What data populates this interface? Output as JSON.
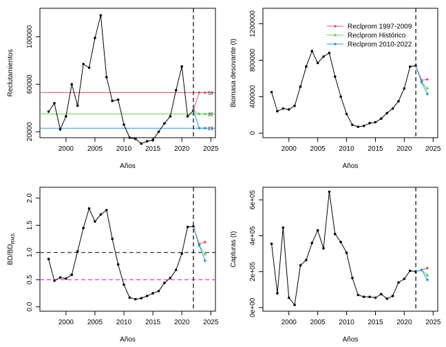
{
  "colors": {
    "historical": "#000000",
    "rec_1997_2009": "#df536b",
    "rec_historico": "#61d04f",
    "rec_2010_2022": "#2297e6",
    "bdrms_ref": "#cd0bbc",
    "vline": "#000000"
  },
  "chart_data": [
    {
      "type": "line",
      "panel": "top-left",
      "xlabel": "Años",
      "ylabel": "Reclutamientos",
      "xlim": [
        1995.5,
        2025.8
      ],
      "ylim": [
        15000,
        124000
      ],
      "xticks": [
        2000,
        2005,
        2010,
        2015,
        2020,
        2025
      ],
      "yticks": [
        20000,
        60000,
        100000
      ],
      "ytick_labels": [
        "20000",
        "60000",
        "100000"
      ],
      "vline_x": 2022,
      "hlines": [
        {
          "y": 53000,
          "color_key": "rec_1997_2009",
          "label": "53"
        },
        {
          "y": 35000,
          "color_key": "rec_historico",
          "label": "35"
        },
        {
          "y": 23000,
          "color_key": "rec_2010_2022",
          "label": "23"
        }
      ],
      "series": [
        {
          "name": "",
          "color_key": "historical",
          "x": [
            1997,
            1998,
            1999,
            2000,
            2001,
            2002,
            2003,
            2004,
            2005,
            2006,
            2007,
            2008,
            2009,
            2010,
            2011,
            2012,
            2013,
            2014,
            2015,
            2016,
            2017,
            2018,
            2019,
            2020,
            2021,
            2022
          ],
          "y": [
            37000,
            44000,
            22000,
            33000,
            60000,
            42000,
            77000,
            74000,
            99000,
            118000,
            66000,
            46000,
            47000,
            26000,
            15000,
            14000,
            10000,
            12000,
            13000,
            20000,
            27000,
            33000,
            55000,
            75000,
            33000,
            38000
          ]
        },
        {
          "name": "Reclprom 1997-2009",
          "color_key": "rec_1997_2009",
          "x": [
            2022,
            2023,
            2024
          ],
          "y": [
            38000,
            53000,
            53000
          ]
        },
        {
          "name": "Reclprom Histórico",
          "color_key": "rec_historico",
          "x": [
            2022,
            2023,
            2024
          ],
          "y": [
            38000,
            35000,
            35000
          ]
        },
        {
          "name": "Reclprom 2010-2022",
          "color_key": "rec_2010_2022",
          "x": [
            2022,
            2023,
            2024
          ],
          "y": [
            38000,
            23000,
            23000
          ]
        }
      ]
    },
    {
      "type": "line",
      "panel": "top-right",
      "xlabel": "Años",
      "ylabel": "Biomasa desovante (t)",
      "xlim": [
        1995.5,
        2025.8
      ],
      "ylim": [
        -50000,
        1370000
      ],
      "xticks": [
        2000,
        2005,
        2010,
        2015,
        2020,
        2025
      ],
      "yticks": [
        0,
        400000,
        800000,
        1200000
      ],
      "ytick_labels": [
        "0",
        "400000",
        "800000",
        "1200000"
      ],
      "vline_x": 2022,
      "legend": {
        "position": "top-right",
        "entries": [
          {
            "label": "Reclprom 1997-2009",
            "color_key": "rec_1997_2009"
          },
          {
            "label": "Reclprom Histórico",
            "color_key": "rec_historico"
          },
          {
            "label": "Reclprom 2010-2022",
            "color_key": "rec_2010_2022"
          }
        ]
      },
      "series": [
        {
          "name": "",
          "color_key": "historical",
          "x": [
            1997,
            1998,
            1999,
            2000,
            2001,
            2002,
            2003,
            2004,
            2005,
            2006,
            2007,
            2008,
            2009,
            2010,
            2011,
            2012,
            2013,
            2014,
            2015,
            2016,
            2017,
            2018,
            2019,
            2020,
            2021,
            2022
          ],
          "y": [
            450000,
            240000,
            270000,
            260000,
            300000,
            510000,
            730000,
            900000,
            770000,
            840000,
            880000,
            620000,
            400000,
            210000,
            90000,
            70000,
            80000,
            110000,
            120000,
            160000,
            220000,
            270000,
            350000,
            490000,
            730000,
            740000
          ]
        },
        {
          "name": "Reclprom 1997-2009",
          "color_key": "rec_1997_2009",
          "x": [
            2022,
            2023,
            2024
          ],
          "y": [
            740000,
            580000,
            590000
          ]
        },
        {
          "name": "Reclprom Histórico",
          "color_key": "rec_historico",
          "x": [
            2022,
            2023,
            2024
          ],
          "y": [
            740000,
            560000,
            490000
          ]
        },
        {
          "name": "Reclprom 2010-2022",
          "color_key": "rec_2010_2022",
          "x": [
            2022,
            2023,
            2024
          ],
          "y": [
            740000,
            560000,
            430000
          ]
        }
      ]
    },
    {
      "type": "line",
      "panel": "bottom-left",
      "xlabel": "Años",
      "ylabel": "BD/BD",
      "ylabel_sub": "RMS",
      "xlim": [
        1995.5,
        2025.8
      ],
      "ylim": [
        -0.08,
        2.2
      ],
      "xticks": [
        2000,
        2005,
        2010,
        2015,
        2020,
        2025
      ],
      "yticks": [
        0.0,
        0.5,
        1.0,
        1.5,
        2.0
      ],
      "ytick_labels": [
        "0.0",
        "0.5",
        "1.0",
        "1.5",
        "2.0"
      ],
      "vline_x": 2022,
      "hlines": [
        {
          "y": 1.0,
          "color_key": "historical",
          "label": ""
        },
        {
          "y": 0.5,
          "color_key": "bdrms_ref",
          "label": ""
        }
      ],
      "series": [
        {
          "name": "",
          "color_key": "historical",
          "x": [
            1997,
            1998,
            1999,
            2000,
            2001,
            2002,
            2003,
            2004,
            2005,
            2006,
            2007,
            2008,
            2009,
            2010,
            2011,
            2012,
            2013,
            2014,
            2015,
            2016,
            2017,
            2018,
            2019,
            2020,
            2021,
            2022
          ],
          "y": [
            0.88,
            0.48,
            0.54,
            0.52,
            0.59,
            1.02,
            1.45,
            1.81,
            1.57,
            1.7,
            1.78,
            1.25,
            0.78,
            0.41,
            0.17,
            0.14,
            0.16,
            0.2,
            0.25,
            0.29,
            0.44,
            0.53,
            0.68,
            0.98,
            1.47,
            1.48
          ]
        },
        {
          "name": "Reclprom 1997-2009",
          "color_key": "rec_1997_2009",
          "x": [
            2022,
            2023,
            2024
          ],
          "y": [
            1.48,
            1.16,
            1.19
          ]
        },
        {
          "name": "Reclprom Histórico",
          "color_key": "rec_historico",
          "x": [
            2022,
            2023,
            2024
          ],
          "y": [
            1.48,
            1.13,
            0.97
          ]
        },
        {
          "name": "Reclprom 2010-2022",
          "color_key": "rec_2010_2022",
          "x": [
            2022,
            2023,
            2024
          ],
          "y": [
            1.48,
            1.13,
            0.85
          ]
        }
      ]
    },
    {
      "type": "line",
      "panel": "bottom-right",
      "xlabel": "Años",
      "ylabel": "Capturas (t)",
      "xlim": [
        1995.5,
        2025.8
      ],
      "ylim": [
        -20000,
        670000
      ],
      "xticks": [
        2000,
        2005,
        2010,
        2015,
        2020,
        2025
      ],
      "yticks": [
        0,
        200000,
        400000,
        600000
      ],
      "ytick_labels": [
        "0e+00",
        "2e+05",
        "4e+05",
        "6e+05"
      ],
      "vline_x": 2022,
      "series": [
        {
          "name": "",
          "color_key": "historical",
          "x": [
            1997,
            1998,
            1999,
            2000,
            2001,
            2002,
            2003,
            2004,
            2005,
            2006,
            2007,
            2008,
            2009,
            2010,
            2011,
            2012,
            2013,
            2014,
            2015,
            2016,
            2017,
            2018,
            2019,
            2020,
            2021,
            2022
          ],
          "y": [
            355000,
            80000,
            445000,
            55000,
            15000,
            235000,
            265000,
            360000,
            430000,
            330000,
            645000,
            410000,
            365000,
            305000,
            165000,
            70000,
            60000,
            60000,
            55000,
            75000,
            50000,
            65000,
            140000,
            160000,
            205000,
            200000
          ]
        },
        {
          "name": "Reclprom 1997-2009",
          "color_key": "rec_1997_2009",
          "x": [
            2022,
            2023,
            2024
          ],
          "y": [
            200000,
            210000,
            220000
          ]
        },
        {
          "name": "Reclprom Histórico",
          "color_key": "rec_historico",
          "x": [
            2022,
            2023,
            2024
          ],
          "y": [
            200000,
            210000,
            180000
          ]
        },
        {
          "name": "Reclprom 2010-2022",
          "color_key": "rec_2010_2022",
          "x": [
            2022,
            2023,
            2024
          ],
          "y": [
            200000,
            210000,
            155000
          ]
        }
      ]
    }
  ]
}
